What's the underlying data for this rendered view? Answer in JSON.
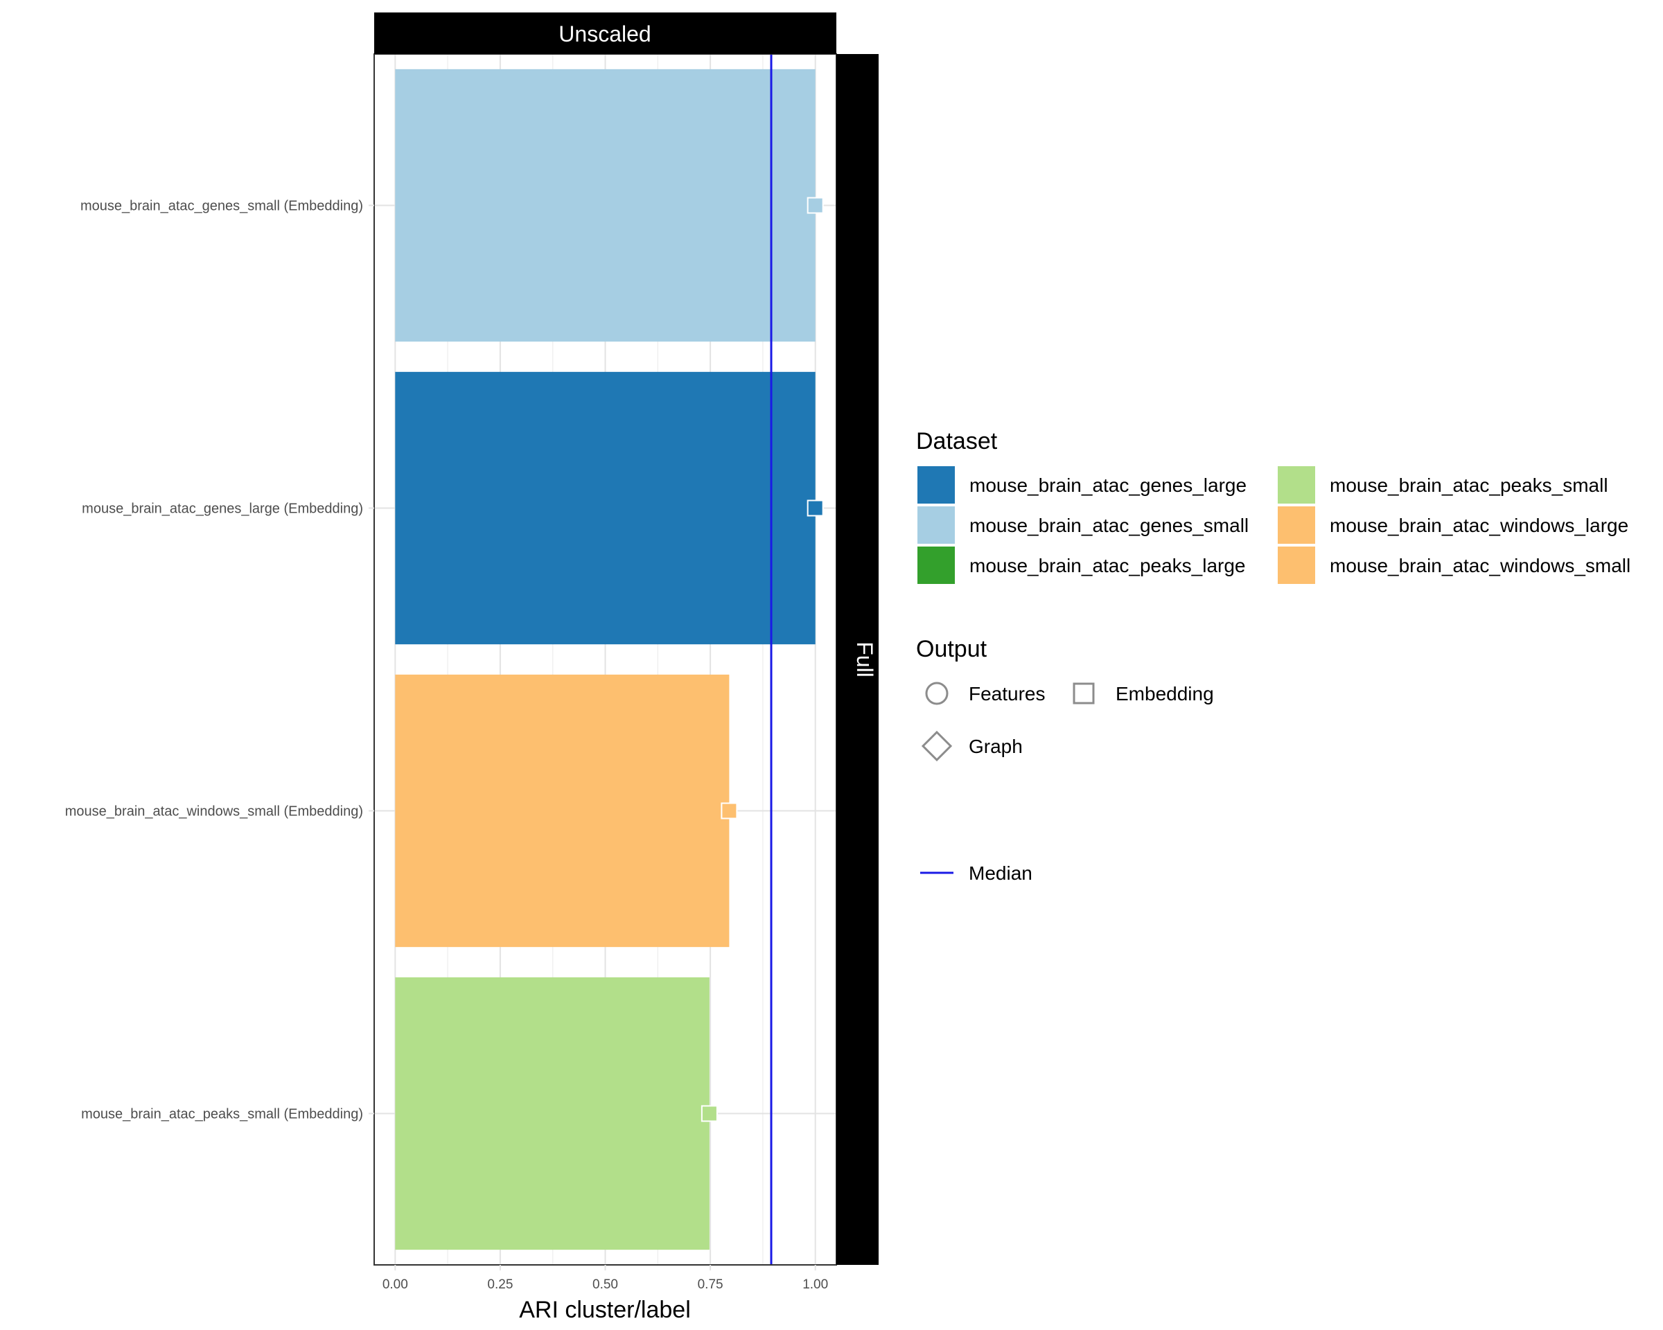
{
  "chart_data": {
    "type": "bar",
    "orientation": "horizontal",
    "facet_top": "Unscaled",
    "facet_right": "Full",
    "xlabel": "ARI cluster/label",
    "xlim": [
      -0.05,
      1.05
    ],
    "xticks": [
      0,
      0.25,
      0.5,
      0.75,
      1
    ],
    "xtick_labels": [
      "0.00",
      "0.25",
      "0.50",
      "0.75",
      "1.00"
    ],
    "median": 0.895,
    "grid": true,
    "bars": [
      {
        "label": "mouse_brain_atac_genes_small (Embedding)",
        "dataset": "mouse_brain_atac_genes_small",
        "output": "Embedding",
        "value": 1.0
      },
      {
        "label": "mouse_brain_atac_genes_large (Embedding)",
        "dataset": "mouse_brain_atac_genes_large",
        "output": "Embedding",
        "value": 1.0
      },
      {
        "label": "mouse_brain_atac_windows_small (Embedding)",
        "dataset": "mouse_brain_atac_windows_small",
        "output": "Embedding",
        "value": 0.795
      },
      {
        "label": "mouse_brain_atac_peaks_small (Embedding)",
        "dataset": "mouse_brain_atac_peaks_small",
        "output": "Embedding",
        "value": 0.748
      }
    ],
    "legend_placement": "right",
    "legend_dataset": {
      "title": "Dataset",
      "items": [
        {
          "name": "mouse_brain_atac_genes_large",
          "color": "#1f78b4"
        },
        {
          "name": "mouse_brain_atac_genes_small",
          "color": "#a6cee3"
        },
        {
          "name": "mouse_brain_atac_peaks_large",
          "color": "#33a02c"
        },
        {
          "name": "mouse_brain_atac_peaks_small",
          "color": "#b2df8a"
        },
        {
          "name": "mouse_brain_atac_windows_large",
          "color": "#fdbf6f"
        },
        {
          "name": "mouse_brain_atac_windows_small",
          "color": "#fdbf6f"
        }
      ]
    },
    "legend_output": {
      "title": "Output",
      "items": [
        {
          "name": "Features",
          "shape": "circle"
        },
        {
          "name": "Embedding",
          "shape": "square"
        },
        {
          "name": "Graph",
          "shape": "diamond"
        }
      ]
    },
    "legend_line": {
      "name": "Median",
      "color": "#0000ee"
    }
  }
}
